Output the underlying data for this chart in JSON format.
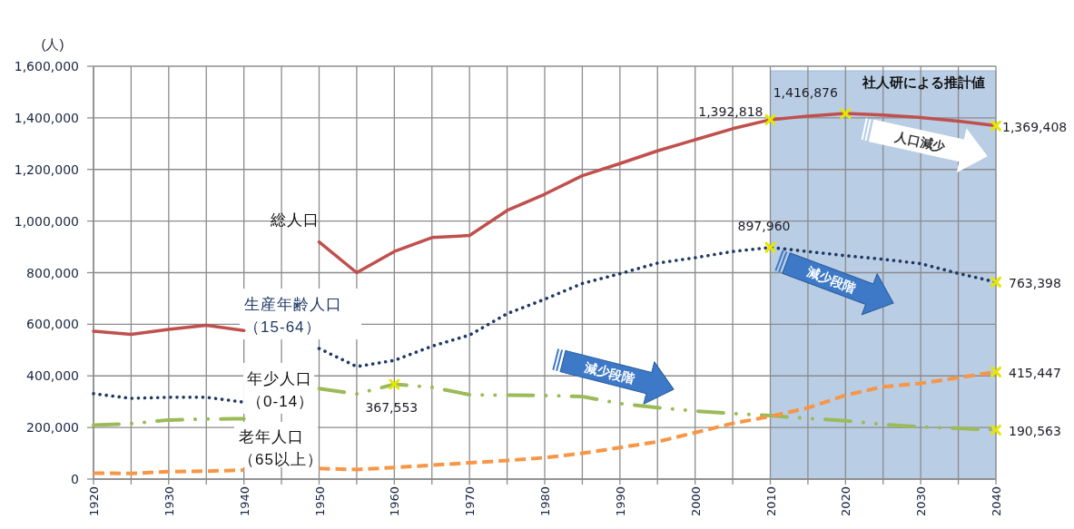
{
  "chart_data": {
    "type": "line",
    "ylabel": "(人)",
    "x": [
      1920,
      1925,
      1930,
      1935,
      1940,
      1945,
      1950,
      1955,
      1960,
      1965,
      1970,
      1975,
      1980,
      1985,
      1990,
      1995,
      2000,
      2005,
      2010,
      2015,
      2020,
      2025,
      2030,
      2035,
      2040
    ],
    "xlim": [
      1920,
      2040
    ],
    "xticks": [
      1920,
      {
        "value": 1925,
        "label": null
      },
      1930,
      {
        "value": 1935,
        "label": null
      },
      1940,
      {
        "value": 1945,
        "label": null
      },
      1950,
      {
        "value": 1955,
        "label": null
      },
      1960,
      {
        "value": 1965,
        "label": null
      },
      1970,
      {
        "value": 1975,
        "label": null
      },
      1980,
      {
        "value": 1985,
        "label": null
      },
      1990,
      {
        "value": 1995,
        "label": null
      },
      2000,
      {
        "value": 2005,
        "label": null
      },
      2010,
      {
        "value": 2015,
        "label": null
      },
      2020,
      {
        "value": 2025,
        "label": null
      },
      2030,
      {
        "value": 2035,
        "label": null
      },
      2040
    ],
    "ylim": [
      0,
      1600000
    ],
    "yticks": [
      0,
      {
        "value": 200000,
        "label": "200,000"
      },
      {
        "value": 400000,
        "label": "400,000"
      },
      {
        "value": 600000,
        "label": "600,000"
      },
      {
        "value": 800000,
        "label": "800,000"
      },
      {
        "value": 1000000,
        "label": "1,000,000"
      },
      {
        "value": 1200000,
        "label": "1,200,000"
      },
      {
        "value": 1400000,
        "label": "1,400,000"
      },
      {
        "value": 1600000,
        "label": "1,600,000"
      }
    ],
    "grid": true,
    "legend": false,
    "series": [
      {
        "name": "総人口",
        "color": "#c0504d",
        "line_style": "solid",
        "values": [
          573000,
          561000,
          580000,
          596000,
          576000,
          null,
          919000,
          800000,
          882000,
          936000,
          944000,
          1041000,
          1104000,
          1176000,
          1223000,
          1272000,
          1315000,
          1358000,
          1392818,
          1407000,
          1416876,
          1411000,
          1401000,
          1387000,
          1369408
        ],
        "value_labels": [
          null,
          null,
          null,
          null,
          null,
          null,
          null,
          null,
          null,
          null,
          null,
          null,
          null,
          null,
          null,
          null,
          null,
          null,
          "1,392,818",
          null,
          "1,416,876",
          null,
          null,
          null,
          "1,369,408"
        ]
      },
      {
        "name": "生産年齢人口（15-64）",
        "color": "#1f3864",
        "line_style": "dotted",
        "values": [
          331000,
          313000,
          317000,
          317000,
          298000,
          null,
          506000,
          436000,
          460000,
          515000,
          558000,
          641000,
          697000,
          758000,
          796000,
          837000,
          858000,
          882000,
          897960,
          882000,
          866000,
          852000,
          835000,
          797000,
          763398
        ],
        "value_labels": [
          null,
          null,
          null,
          null,
          null,
          null,
          null,
          null,
          null,
          null,
          null,
          null,
          null,
          null,
          null,
          null,
          null,
          null,
          "897,960",
          null,
          null,
          null,
          null,
          null,
          "763,398"
        ]
      },
      {
        "name": "年少人口（0-14）",
        "color": "#9bbb59",
        "line_style": "dashdot",
        "values": [
          209000,
          215000,
          229000,
          233000,
          234000,
          null,
          351000,
          330000,
          367553,
          356000,
          327000,
          325000,
          324000,
          320000,
          293000,
          277000,
          264000,
          254000,
          246000,
          235000,
          226000,
          212000,
          202000,
          197000,
          190563
        ],
        "value_labels": [
          null,
          null,
          null,
          null,
          null,
          null,
          null,
          null,
          "367,553",
          null,
          null,
          null,
          null,
          null,
          null,
          null,
          null,
          null,
          null,
          null,
          null,
          null,
          null,
          null,
          "190,563"
        ]
      },
      {
        "name": "老年人口（65以上）",
        "color": "#f79646",
        "line_style": "dashed",
        "values": [
          23000,
          22000,
          29000,
          31000,
          35000,
          null,
          41000,
          37000,
          45000,
          54000,
          63000,
          72000,
          83000,
          100000,
          122000,
          145000,
          180000,
          216000,
          243000,
          276000,
          325000,
          358000,
          371000,
          393000,
          415447
        ],
        "value_labels": [
          null,
          null,
          null,
          null,
          null,
          null,
          null,
          null,
          null,
          null,
          null,
          null,
          null,
          null,
          null,
          null,
          null,
          null,
          null,
          null,
          null,
          null,
          null,
          null,
          "415,447"
        ]
      }
    ],
    "bands": [
      {
        "axis": "x",
        "from": 2010,
        "to": 2040,
        "label": "社人研による推計値",
        "color": "#b9cde5"
      }
    ],
    "annotations": [
      "減少段階",
      "減少段階",
      "人口減少"
    ]
  }
}
